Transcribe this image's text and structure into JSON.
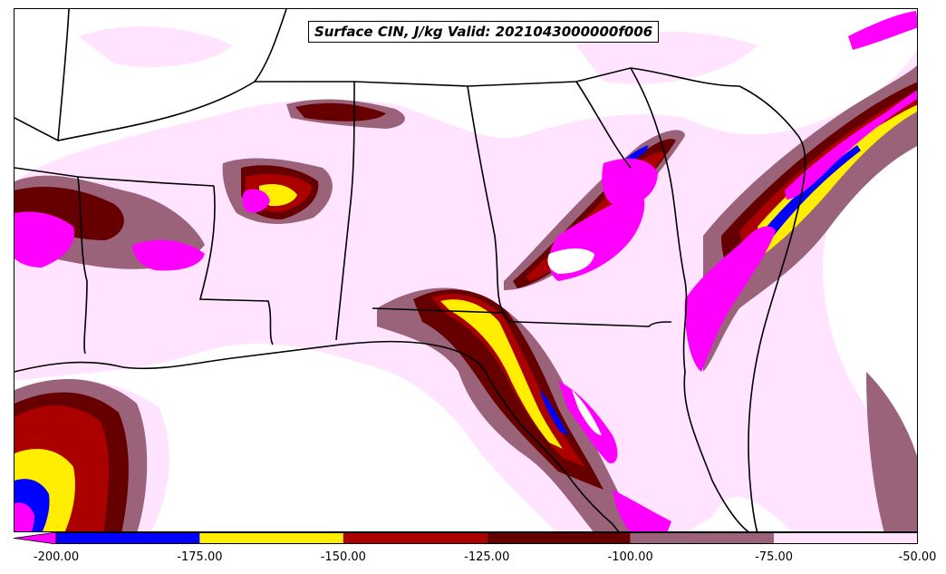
{
  "title": "Surface CIN, J/kg Valid: 2021043000000f006",
  "colorbar": {
    "min": -200,
    "max": -50,
    "ticks": [
      "-200.00",
      "-175.00",
      "-150.00",
      "-125.00",
      "-100.00",
      "-75.00",
      "-50.00"
    ],
    "bins": [
      {
        "from": -200,
        "to": -175,
        "color": "#0000ff"
      },
      {
        "from": -175,
        "to": -150,
        "color": "#ffee00"
      },
      {
        "from": -150,
        "to": -125,
        "color": "#aa0000"
      },
      {
        "from": -125,
        "to": -100,
        "color": "#660000"
      },
      {
        "from": -100,
        "to": -75,
        "color": "#9a6379"
      },
      {
        "from": -75,
        "to": -50,
        "color": "#ffe3ff"
      }
    ],
    "under_color": "#ff00ff"
  },
  "colors": {
    "lightest": "#ffe3ff",
    "mauve": "#9a6379",
    "darkred": "#660000",
    "red": "#aa0000",
    "yellow": "#ffee00",
    "blue": "#0000ff",
    "magenta": "#ff00ff",
    "border": "#000000"
  }
}
